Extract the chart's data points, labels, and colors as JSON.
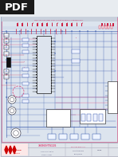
{
  "page_bg": "#e8ecf0",
  "diagram_bg": "#dce4ee",
  "pdf_badge_color": "#1a1a1a",
  "pdf_text_color": "#ffffff",
  "title_text": "See Also The New Tiller Circuit Diagram 3-6969/TS115.",
  "title_color": "#cc3366",
  "blue": "#3355aa",
  "red": "#cc2244",
  "pink": "#dd4477",
  "dark": "#222233",
  "black": "#111111",
  "gray": "#aaaabb",
  "light_blue": "#aabbdd",
  "footer_bg": "#e0e4ea",
  "mitsubishi_red": "#cc0000",
  "white": "#ffffff",
  "connector_red": "#cc3344",
  "connector_bg": "#ffeeee",
  "ic_bg": "#dde4ee",
  "outer_border": "#8899bb",
  "inner_border_red": "#cc3366"
}
